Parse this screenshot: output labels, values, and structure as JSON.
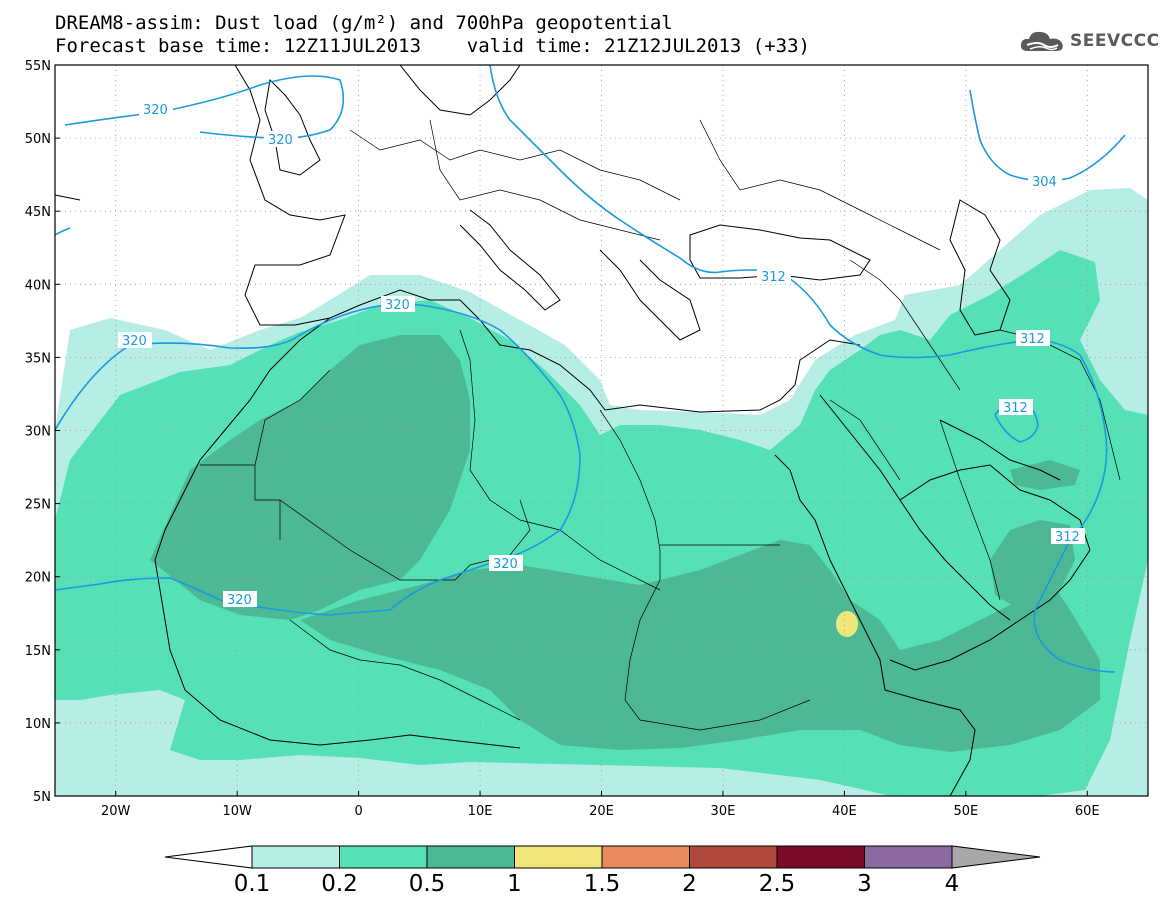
{
  "header": {
    "title_line1": "DREAM8-assim: Dust load (g/m²) and 700hPa geopotential",
    "title_line2": "Forecast base time: 12Z11JUL2013    valid time: 21Z12JUL2013 (+33)",
    "logo_text": "SEEVCCC",
    "logo_icon": "cloud-icon"
  },
  "map": {
    "lon_range": [
      -25,
      65
    ],
    "lat_range": [
      5,
      55
    ],
    "lat_labels": [
      "55N",
      "50N",
      "45N",
      "40N",
      "35N",
      "30N",
      "25N",
      "20N",
      "15N",
      "10N",
      "5N"
    ],
    "lon_labels": [
      "20W",
      "10W",
      "0",
      "10E",
      "20E",
      "30E",
      "40E",
      "50E",
      "60E"
    ],
    "contour_color": "#1a9ae0",
    "contour_labels": [
      "320",
      "320",
      "320",
      "320",
      "320",
      "320",
      "312",
      "312",
      "312",
      "312",
      "304"
    ]
  },
  "colorbar": {
    "levels": [
      "0.1",
      "0.2",
      "0.5",
      "1",
      "1.5",
      "2",
      "2.5",
      "3",
      "4"
    ],
    "colors": [
      "#b6ede4",
      "#56e0b6",
      "#4db894",
      "#f0e67a",
      "#e88a5e",
      "#b0483c",
      "#7a0c28",
      "#8a6aa0",
      "#a8a8a8"
    ],
    "under_color": "#ffffff"
  }
}
